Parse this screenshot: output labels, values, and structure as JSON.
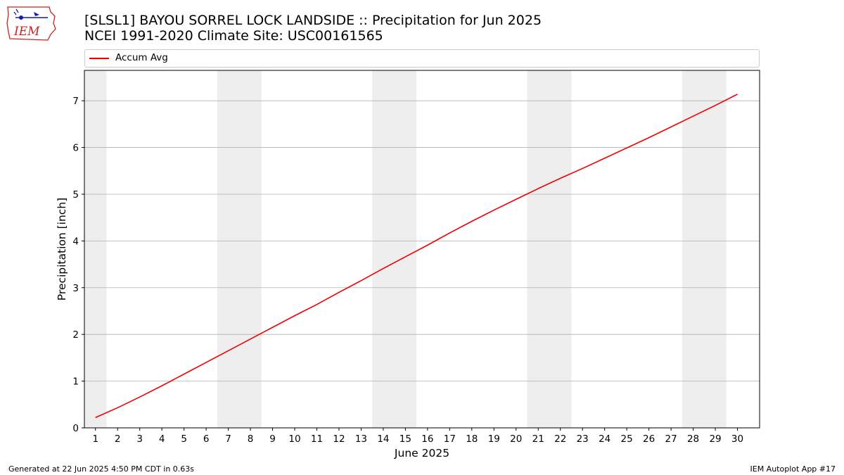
{
  "header": {
    "title_line1": "[SLSL1] BAYOU SORREL LOCK LANDSIDE :: Precipitation for Jun 2025",
    "title_line2": "NCEI 1991-2020 Climate Site: USC00161565",
    "logo_text": "IEM"
  },
  "footer": {
    "left": "Generated at 22 Jun 2025 4:50 PM CDT in 0.63s",
    "right": "IEM Autoplot App #17"
  },
  "colors": {
    "series": "#ee0000",
    "weekend_band": "#eeeeee",
    "grid": "#b0b0b0",
    "logo_red": "#cc2222",
    "logo_blue": "#1a1aaa"
  },
  "chart_data": {
    "type": "line",
    "title": "[SLSL1] BAYOU SORREL LOCK LANDSIDE :: Precipitation for Jun 2025",
    "subtitle": "NCEI 1991-2020 Climate Site: USC00161565",
    "xlabel": "June 2025",
    "ylabel": "Precipitation [inch]",
    "xlim": [
      0.5,
      31
    ],
    "ylim": [
      0,
      7.65
    ],
    "xticks": [
      1,
      2,
      3,
      4,
      5,
      6,
      7,
      8,
      9,
      10,
      11,
      12,
      13,
      14,
      15,
      16,
      17,
      18,
      19,
      20,
      21,
      22,
      23,
      24,
      25,
      26,
      27,
      28,
      29,
      30
    ],
    "yticks": [
      0,
      1,
      2,
      3,
      4,
      5,
      6,
      7
    ],
    "grid": "y",
    "legend": "top",
    "weekend_bands": [
      [
        0.5,
        1.5
      ],
      [
        6.5,
        8.5
      ],
      [
        13.5,
        15.5
      ],
      [
        20.5,
        22.5
      ],
      [
        27.5,
        29.5
      ]
    ],
    "series": [
      {
        "name": "Accum Avg",
        "x": [
          1,
          2,
          3,
          4,
          5,
          6,
          7,
          8,
          9,
          10,
          11,
          12,
          13,
          14,
          15,
          16,
          17,
          18,
          19,
          20,
          21,
          22,
          23,
          24,
          25,
          26,
          27,
          28,
          29,
          30
        ],
        "values": [
          0.22,
          0.43,
          0.66,
          0.9,
          1.15,
          1.4,
          1.65,
          1.9,
          2.15,
          2.4,
          2.64,
          2.9,
          3.15,
          3.41,
          3.66,
          3.91,
          4.17,
          4.42,
          4.66,
          4.89,
          5.12,
          5.34,
          5.55,
          5.77,
          5.99,
          6.21,
          6.44,
          6.67,
          6.9,
          7.14
        ]
      }
    ]
  }
}
